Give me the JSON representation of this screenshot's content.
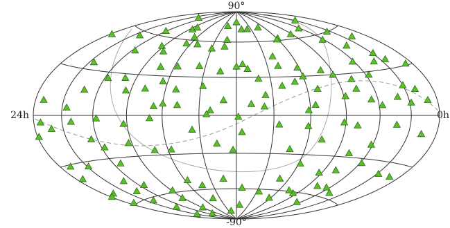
{
  "chart_data": {
    "type": "scatter",
    "projection": "hammer",
    "xlim": [
      24,
      0
    ],
    "ylim": [
      -90,
      90
    ],
    "xticks": [
      {
        "value": 24,
        "label": "24h"
      },
      {
        "value": 0,
        "label": "0h"
      }
    ],
    "yticks": [
      {
        "value": 90,
        "label": "90°"
      },
      {
        "value": -90,
        "label": "-90°"
      }
    ],
    "grid": true,
    "grid_ra": [
      2,
      4,
      6,
      8,
      10,
      12,
      14,
      16,
      18,
      20,
      22
    ],
    "grid_dec": [
      -60,
      -30,
      0,
      30,
      60
    ],
    "color": "#5cbf2a",
    "edge_color": "#2e6b16",
    "x": [
      21.1,
      17.7,
      17.5,
      16.3,
      16.4,
      20.1,
      13.4,
      12.0,
      11.3,
      10.5,
      12.9,
      8.8,
      7.9,
      6.1,
      4.1,
      1.9,
      4.1,
      2.3,
      3.0,
      1.2,
      1.9,
      2.6,
      23.9,
      21.7,
      21.5,
      19.8,
      18.2,
      17.6,
      16.9,
      15.8,
      16.3,
      15.4,
      15.4,
      14.4,
      14.0,
      13.0,
      13.0,
      12.0,
      11.6,
      11.3,
      10.7,
      9.4,
      9.3,
      8.1,
      8.1,
      8.6,
      8.0,
      6.7,
      6.1,
      5.1,
      4.1,
      3.8,
      1.6,
      2.0,
      1.3,
      0.5,
      2.7,
      1.9,
      4.4,
      5.1,
      3.8,
      5.9,
      7.4,
      7.7,
      8.1,
      9.4,
      10.4,
      10.5,
      11.2,
      11.9,
      12.7,
      13.4,
      13.9,
      15.2,
      16.0,
      16.7,
      16.5,
      18.3,
      18.7,
      17.2,
      19.8,
      20.9,
      21.7,
      23.4,
      23.5,
      23.9,
      22.8,
      21.4,
      19.8,
      18.2,
      20.4,
      19.8,
      18.2,
      16.8,
      14.4,
      13.6,
      13.1,
      12.2,
      11.7,
      9.7,
      8.9,
      8.1,
      7.2,
      6.1,
      5.3,
      5.2,
      4.1,
      2.9,
      1.1,
      0.7,
      0.8,
      1.9,
      3.9,
      5.2,
      6.2,
      7.9,
      5.2,
      4.3,
      3.3,
      6.4,
      7.1,
      8.7,
      8.2,
      9.8,
      11.5,
      11.5,
      13.0,
      14.8,
      14.9,
      15.8,
      17.9,
      18.1,
      17.9,
      21.8,
      20.9,
      21.3,
      21.0,
      20.7,
      23.5,
      23.2,
      23.9,
      23.5,
      23.2,
      21.9,
      19.5,
      15.8,
      13.4,
      19.0,
      19.6,
      4.4
    ],
    "values": [
      78,
      69,
      71,
      63,
      57,
      64,
      75,
      79,
      72,
      72,
      62,
      73,
      62,
      64,
      67,
      72,
      56,
      60,
      49,
      53,
      41,
      36,
      52,
      35,
      57,
      47,
      53,
      49,
      37,
      38,
      26,
      20,
      57,
      39,
      54,
      35,
      56,
      39,
      41,
      37,
      29,
      47,
      39,
      61,
      37,
      26,
      30,
      34,
      30,
      26,
      38,
      28,
      36,
      19,
      16,
      31,
      12,
      8,
      11,
      19,
      7,
      14,
      20,
      8,
      4,
      23,
      16,
      7,
      9,
      -1,
      12,
      4,
      23,
      8,
      9,
      -2,
      7,
      18,
      27,
      20,
      26,
      17,
      5,
      9,
      -4,
      -12,
      -8,
      -4,
      -2,
      -6,
      -16,
      -22,
      -20,
      -26,
      -11,
      1,
      -22,
      -27,
      -13,
      -7,
      -26,
      -8,
      -18,
      -5,
      -7,
      -27,
      -20,
      -6,
      -11,
      9,
      -38,
      -38,
      -33,
      -40,
      -43,
      -37,
      -53,
      -53,
      -56,
      -61,
      -59,
      -50,
      -67,
      -62,
      -59,
      -75,
      -51,
      -68,
      -56,
      -51,
      -75,
      -65,
      -58,
      -78,
      -70,
      -62,
      -54,
      -46,
      -59,
      -51,
      -52,
      -39,
      -31,
      -33,
      -34,
      -26,
      -81,
      -81,
      -51,
      -67
    ]
  }
}
